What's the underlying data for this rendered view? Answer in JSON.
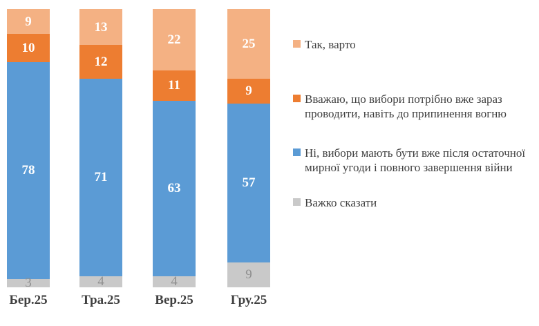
{
  "chart_data": {
    "type": "bar",
    "subtype": "stacked-column",
    "title": "",
    "xlabel": "",
    "ylabel": "",
    "ylim": [
      0,
      100
    ],
    "grid": false,
    "legend_position": "right",
    "categories": [
      "Бер.25",
      "Тра.25",
      "Вер.25",
      "Гру.25"
    ],
    "series": [
      {
        "name": "Так, варто",
        "color": "#F4B183",
        "values": [
          9,
          13,
          22,
          25
        ]
      },
      {
        "name": "Вважаю, що вибори потрібно вже зараз проводити, навіть до припинення вогню",
        "color": "#ED7D31",
        "values": [
          10,
          12,
          11,
          9
        ]
      },
      {
        "name": "Ні, вибори мають бути вже після остаточної мирної угоди і повного завершення війни",
        "color": "#5B9BD5",
        "values": [
          78,
          71,
          63,
          57
        ]
      },
      {
        "name": "Важко сказати",
        "color": "#C9C9C9",
        "values": [
          3,
          4,
          4,
          9
        ]
      }
    ],
    "value_label_color": "#FFFFFF",
    "gray_value_label_color": "#8F8F8F",
    "category_label_color": "#404040",
    "legend_text_color": "#404040"
  }
}
